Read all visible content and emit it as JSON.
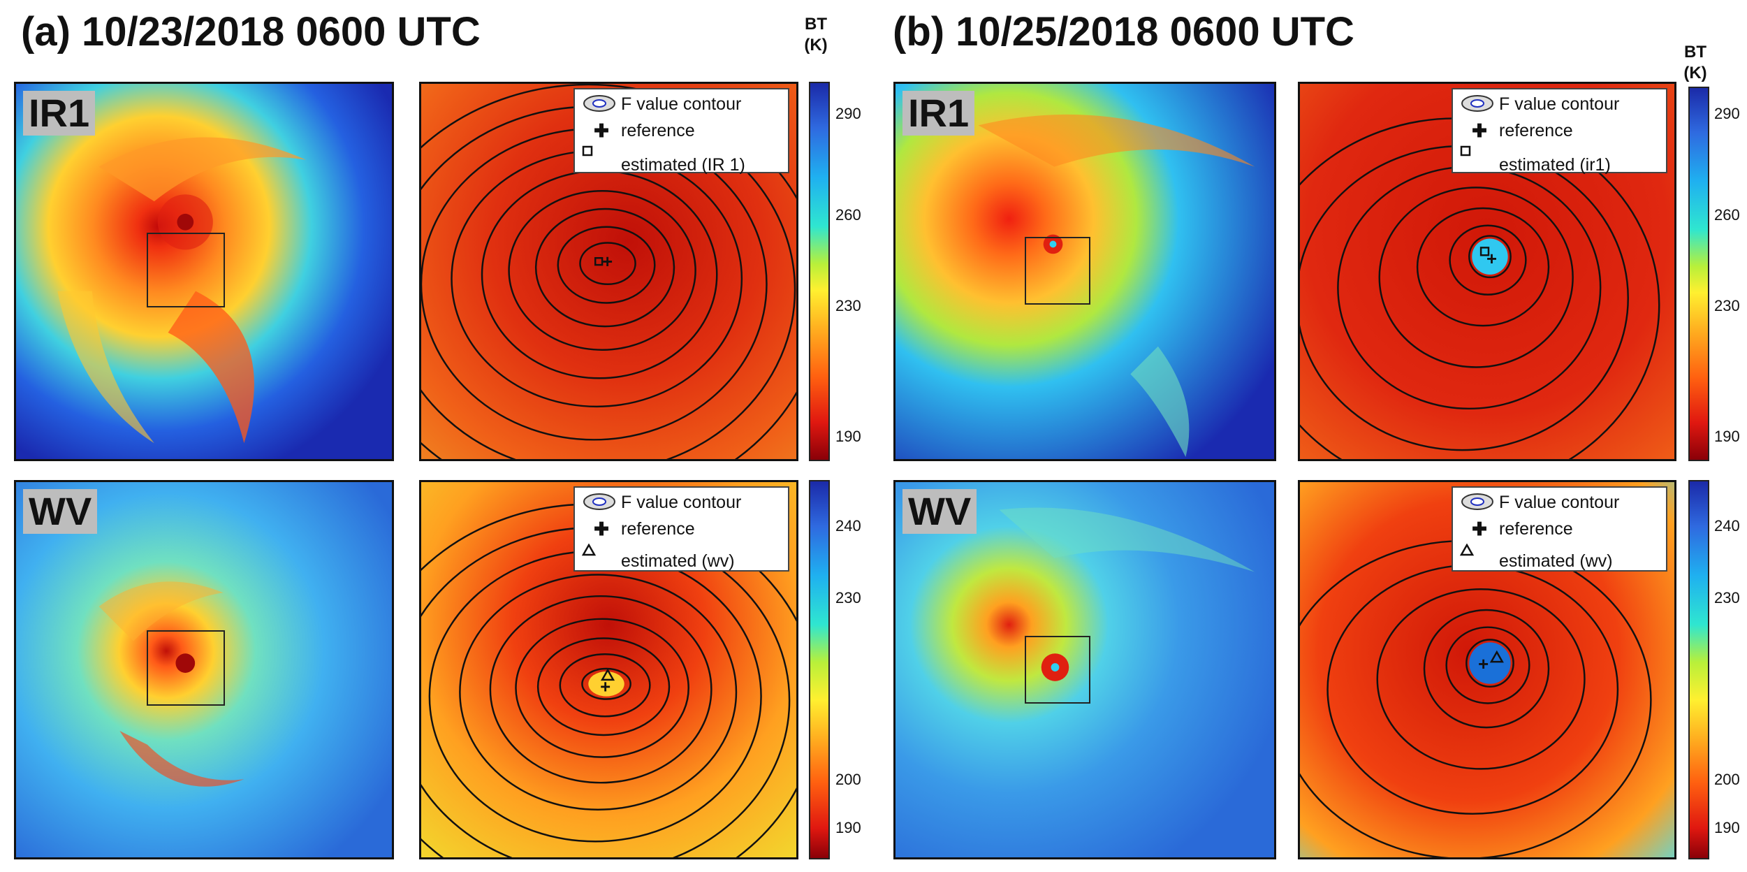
{
  "titles": {
    "a": "(a) 10/23/2018 0600 UTC",
    "b": "(b) 10/25/2018 0600 UTC"
  },
  "labels": {
    "ir": "IR1",
    "wv": "WV"
  },
  "colorbar_title": {
    "a_line1": "BT",
    "a_line2": "(K)",
    "b_line1": "BT",
    "b_line2": "(K)"
  },
  "legends": {
    "a_ir": {
      "contour": "F value contour",
      "reference": "reference",
      "estimated": "estimated  (IR 1)"
    },
    "a_wv": {
      "contour": "F value contour",
      "reference": "reference",
      "estimated": "estimated (wv)"
    },
    "b_ir": {
      "contour": "F value contour",
      "reference": "reference",
      "estimated": "estimated (ir1)"
    },
    "b_wv": {
      "contour": "F value contour",
      "reference": "reference",
      "estimated": "estimated (wv)"
    }
  },
  "ticks": {
    "ir": [
      "290",
      "260",
      "230",
      "190"
    ],
    "wv": [
      "240",
      "230",
      "200",
      "190"
    ]
  },
  "colors": {
    "cold": "#1b2aa8",
    "warm": "#e01810",
    "mid": "#fff030"
  }
}
